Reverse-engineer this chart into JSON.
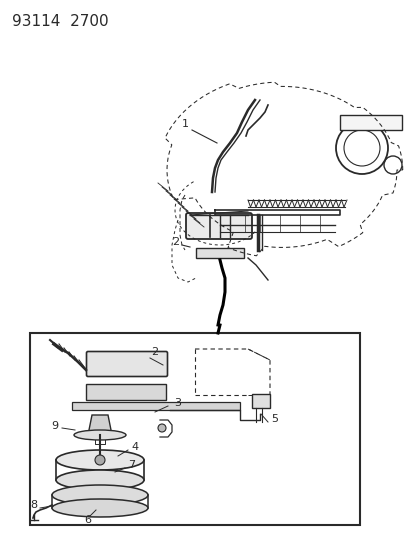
{
  "title": "93114  2700",
  "bg_color": "#ffffff",
  "line_color": "#2a2a2a",
  "fig_width": 4.14,
  "fig_height": 5.33,
  "dpi": 100,
  "title_fontsize": 11,
  "label_fontsize": 8
}
